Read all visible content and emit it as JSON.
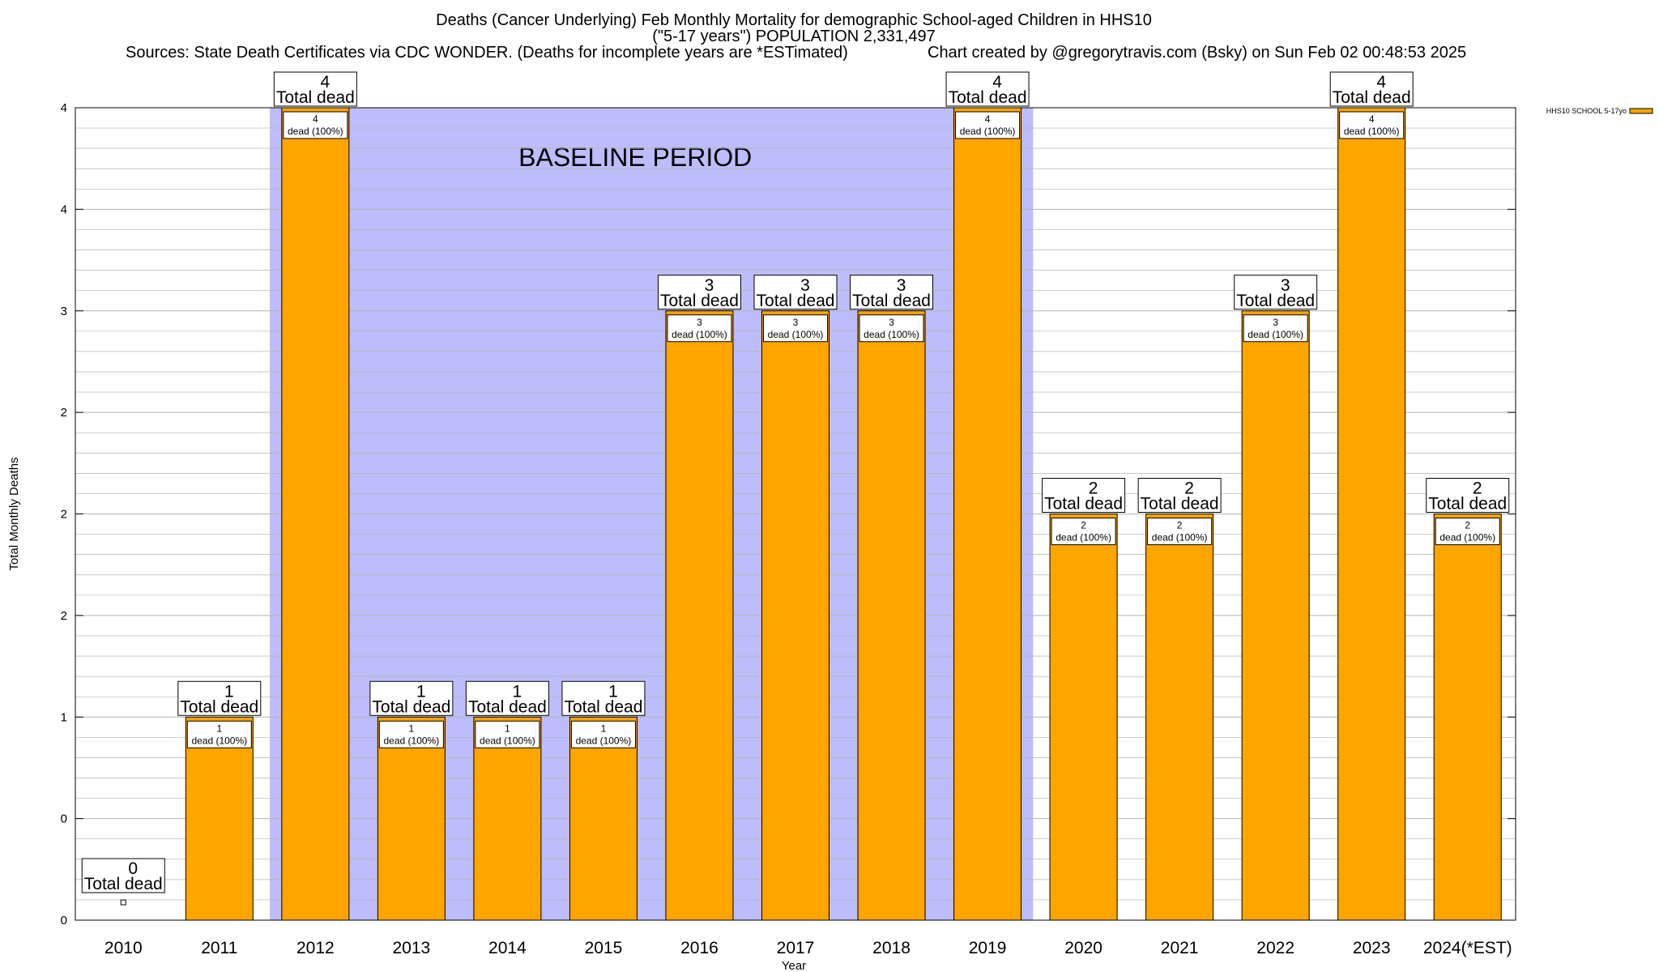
{
  "header": {
    "title_line1": "Deaths (Cancer Underlying) Feb Monthly Mortality for demographic School-aged Children in HHS10",
    "title_line2": "(\"5-17 years\") POPULATION 2,331,497",
    "sources": "Sources: State Death Certificates via CDC WONDER. (Deaths for incomplete years are *ESTimated)",
    "credit": "Chart created by @gregorytravis.com (Bsky) on Sun Feb 02 00:48:53 2025"
  },
  "colors": {
    "bar": "#FFA500",
    "baseline_shade": "#BDBDFB",
    "grid": "#B4B4B4"
  },
  "chart_data": {
    "type": "bar",
    "title": "Deaths (Cancer Underlying) Feb Monthly Mortality for demographic School-aged Children in HHS10",
    "xlabel": "Year",
    "ylabel": "Total Monthly Deaths",
    "ylim": [
      0,
      4
    ],
    "grid": true,
    "legend_placement": "top-right",
    "y_tick_labels": [
      "0",
      "0",
      "1",
      "2",
      "2",
      "2",
      "3",
      "4",
      "4"
    ],
    "categories": [
      "2010",
      "2011",
      "2012",
      "2013",
      "2014",
      "2015",
      "2016",
      "2017",
      "2018",
      "2019",
      "2020",
      "2021",
      "2022",
      "2023",
      "2024(*EST)"
    ],
    "series": [
      {
        "name": "HHS10 SCHOOL 5-17yo",
        "values": [
          0,
          1,
          4,
          1,
          1,
          1,
          3,
          3,
          3,
          4,
          2,
          2,
          3,
          4,
          2
        ]
      }
    ],
    "total_label_suffix": "Total dead",
    "dead_label_suffix": "dead (100%)",
    "baseline": {
      "label": "BASELINE PERIOD",
      "from": "2012",
      "to": "2019"
    }
  }
}
